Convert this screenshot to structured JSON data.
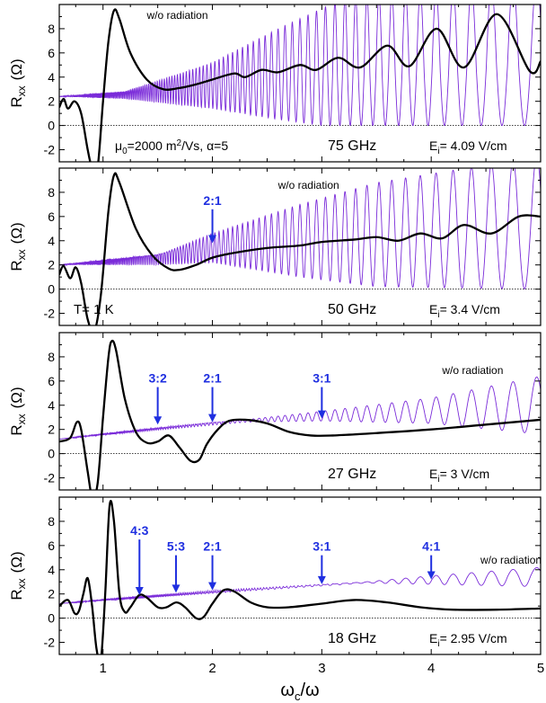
{
  "chart_data": [
    {
      "type": "line",
      "panel_label": "75 GHz",
      "field_label": "E",
      "field_sub": "i",
      "field_value": "= 4.09 V/cm",
      "extra_text": [
        "μ",
        "0",
        "=2000 m",
        "2",
        "/Vs,  α=5"
      ],
      "ylabel_main": "R",
      "ylabel_sub": "xx",
      "ylabel_unit": "(Ω)",
      "xlim": [
        0.6,
        5
      ],
      "ylim": [
        -3,
        10
      ],
      "yticks": [
        -2,
        0,
        2,
        4,
        6,
        8
      ],
      "xticks": [
        1,
        2,
        3,
        4,
        5
      ],
      "show_xticklabels": false,
      "dark_text_annotations": [
        {
          "text": "w/o radiation",
          "x": 1.4,
          "y": 8.8
        }
      ],
      "arrows": [],
      "series": [
        {
          "label_ref": "w/o radiation",
          "style": "oscillating",
          "color": "#7a2bd9",
          "baseline": [
            [
              0.6,
              2.4
            ],
            [
              1.0,
              2.6
            ],
            [
              2.0,
              3.4
            ],
            [
              3.0,
              4.0
            ],
            [
              4.0,
              4.5
            ],
            [
              5.0,
              5.0
            ]
          ],
          "envelope_top": [
            [
              0.6,
              2.4
            ],
            [
              1.2,
              2.8
            ],
            [
              2.0,
              5.2
            ],
            [
              2.6,
              8.0
            ],
            [
              3.2,
              10.5
            ],
            [
              5.0,
              12
            ]
          ],
          "envelope_bottom": [
            [
              0.6,
              2.4
            ],
            [
              1.2,
              2.2
            ],
            [
              2.0,
              1.4
            ],
            [
              2.6,
              0.5
            ],
            [
              3.0,
              0.0
            ],
            [
              5.0,
              0.0
            ]
          ]
        },
        {
          "label_ref": "with radiation",
          "style": "bold",
          "color": "#000000",
          "points": [
            [
              0.6,
              1.5
            ],
            [
              0.64,
              2.2
            ],
            [
              0.68,
              1.4
            ],
            [
              0.74,
              2.0
            ],
            [
              0.8,
              1.0
            ],
            [
              0.86,
              -2.0
            ],
            [
              0.9,
              -3.5
            ],
            [
              0.95,
              -3.5
            ],
            [
              1.0,
              2.0
            ],
            [
              1.05,
              7.0
            ],
            [
              1.1,
              9.5
            ],
            [
              1.15,
              8.8
            ],
            [
              1.25,
              6.0
            ],
            [
              1.4,
              3.8
            ],
            [
              1.55,
              3.0
            ],
            [
              1.7,
              3.1
            ],
            [
              1.85,
              3.4
            ],
            [
              2.0,
              3.8
            ],
            [
              2.2,
              4.3
            ],
            [
              2.3,
              4.0
            ],
            [
              2.45,
              4.6
            ],
            [
              2.6,
              4.4
            ],
            [
              2.8,
              5.0
            ],
            [
              2.95,
              4.6
            ],
            [
              3.15,
              5.6
            ],
            [
              3.35,
              4.8
            ],
            [
              3.6,
              6.6
            ],
            [
              3.8,
              4.9
            ],
            [
              4.05,
              8.0
            ],
            [
              4.3,
              4.8
            ],
            [
              4.6,
              9.2
            ],
            [
              4.9,
              4.5
            ],
            [
              5.0,
              5.3
            ]
          ]
        }
      ]
    },
    {
      "type": "line",
      "panel_label": "50 GHz",
      "field_label": "E",
      "field_sub": "i",
      "field_value": "= 3.4 V/cm",
      "extra_text": [
        "T= 1 K"
      ],
      "ylabel_main": "R",
      "ylabel_sub": "xx",
      "ylabel_unit": "(Ω)",
      "xlim": [
        0.6,
        5
      ],
      "ylim": [
        -3,
        10
      ],
      "yticks": [
        -2,
        0,
        2,
        4,
        6,
        8
      ],
      "xticks": [
        1,
        2,
        3,
        4,
        5
      ],
      "show_xticklabels": false,
      "dark_text_annotations": [
        {
          "text": "w/o radiation",
          "x": 2.6,
          "y": 8.3
        }
      ],
      "arrows": [
        {
          "label": "2:1",
          "x": 2.0,
          "y_from": 6.6,
          "y_to": 3.8
        }
      ],
      "series": [
        {
          "label_ref": "w/o radiation",
          "style": "oscillating",
          "color": "#7a2bd9",
          "baseline": [
            [
              0.6,
              2.0
            ],
            [
              1.0,
              2.4
            ],
            [
              2.0,
              3.4
            ],
            [
              3.0,
              4.0
            ],
            [
              4.0,
              4.6
            ],
            [
              5.0,
              5.0
            ]
          ],
          "envelope_top": [
            [
              0.6,
              2.0
            ],
            [
              1.5,
              2.8
            ],
            [
              2.0,
              4.6
            ],
            [
              2.8,
              7.0
            ],
            [
              3.5,
              8.8
            ],
            [
              5.0,
              11
            ]
          ],
          "envelope_bottom": [
            [
              0.6,
              2.0
            ],
            [
              1.5,
              2.0
            ],
            [
              2.0,
              2.2
            ],
            [
              2.8,
              1.0
            ],
            [
              3.5,
              0.2
            ],
            [
              5.0,
              0.0
            ]
          ]
        },
        {
          "label_ref": "with radiation",
          "style": "bold",
          "color": "#000000",
          "points": [
            [
              0.6,
              1.2
            ],
            [
              0.64,
              1.9
            ],
            [
              0.7,
              0.9
            ],
            [
              0.75,
              1.8
            ],
            [
              0.8,
              0.5
            ],
            [
              0.86,
              -2.5
            ],
            [
              0.92,
              -3.5
            ],
            [
              0.98,
              -0.5
            ],
            [
              1.05,
              6.5
            ],
            [
              1.1,
              9.4
            ],
            [
              1.15,
              8.8
            ],
            [
              1.3,
              5.0
            ],
            [
              1.45,
              2.8
            ],
            [
              1.6,
              1.7
            ],
            [
              1.7,
              1.6
            ],
            [
              1.85,
              2.0
            ],
            [
              2.0,
              2.6
            ],
            [
              2.2,
              3.0
            ],
            [
              2.5,
              3.4
            ],
            [
              2.8,
              3.6
            ],
            [
              3.0,
              3.9
            ],
            [
              3.3,
              4.1
            ],
            [
              3.5,
              4.3
            ],
            [
              3.7,
              4.0
            ],
            [
              3.9,
              4.6
            ],
            [
              4.1,
              4.2
            ],
            [
              4.3,
              5.3
            ],
            [
              4.55,
              4.6
            ],
            [
              4.8,
              6.0
            ],
            [
              5.0,
              6.0
            ]
          ]
        }
      ]
    },
    {
      "type": "line",
      "panel_label": "27 GHz",
      "field_label": "E",
      "field_sub": "i",
      "field_value": "= 3 V/cm",
      "extra_text": [],
      "ylabel_main": "R",
      "ylabel_sub": "xx",
      "ylabel_unit": "(Ω)",
      "xlim": [
        0.6,
        5
      ],
      "ylim": [
        -3,
        10
      ],
      "yticks": [
        -2,
        0,
        2,
        4,
        6,
        8
      ],
      "xticks": [
        1,
        2,
        3,
        4,
        5
      ],
      "show_xticklabels": false,
      "dark_text_annotations": [
        {
          "text": "w/o radiation",
          "x": 4.1,
          "y": 6.6
        }
      ],
      "arrows": [
        {
          "label": "3:2",
          "x": 1.5,
          "y_from": 5.5,
          "y_to": 2.4
        },
        {
          "label": "2:1",
          "x": 2.0,
          "y_from": 5.5,
          "y_to": 2.6
        },
        {
          "label": "3:1",
          "x": 3.0,
          "y_from": 5.5,
          "y_to": 2.9
        }
      ],
      "series": [
        {
          "label_ref": "w/o radiation",
          "style": "oscillating",
          "color": "#7a2bd9",
          "baseline": [
            [
              0.6,
              1.2
            ],
            [
              1.0,
              1.7
            ],
            [
              2.0,
              2.6
            ],
            [
              3.0,
              3.1
            ],
            [
              4.0,
              3.6
            ],
            [
              5.0,
              4.0
            ]
          ],
          "envelope_top": [
            [
              0.6,
              1.2
            ],
            [
              2.3,
              2.8
            ],
            [
              3.0,
              3.5
            ],
            [
              4.0,
              4.6
            ],
            [
              5.0,
              6.4
            ]
          ],
          "envelope_bottom": [
            [
              0.6,
              1.2
            ],
            [
              2.3,
              2.6
            ],
            [
              3.0,
              2.7
            ],
            [
              4.0,
              2.5
            ],
            [
              5.0,
              1.6
            ]
          ]
        },
        {
          "label_ref": "with radiation",
          "style": "bold",
          "color": "#000000",
          "points": [
            [
              0.6,
              1.0
            ],
            [
              0.7,
              1.3
            ],
            [
              0.76,
              2.6
            ],
            [
              0.8,
              2.0
            ],
            [
              0.86,
              -1.5
            ],
            [
              0.9,
              -3.5
            ],
            [
              0.95,
              -2.5
            ],
            [
              1.0,
              3.0
            ],
            [
              1.05,
              8.0
            ],
            [
              1.08,
              9.3
            ],
            [
              1.12,
              8.5
            ],
            [
              1.2,
              4.5
            ],
            [
              1.3,
              1.8
            ],
            [
              1.4,
              0.9
            ],
            [
              1.5,
              1.0
            ],
            [
              1.6,
              1.5
            ],
            [
              1.7,
              0.5
            ],
            [
              1.8,
              -0.6
            ],
            [
              1.88,
              -0.5
            ],
            [
              1.95,
              0.8
            ],
            [
              2.05,
              2.0
            ],
            [
              2.15,
              2.7
            ],
            [
              2.3,
              2.8
            ],
            [
              2.5,
              2.5
            ],
            [
              2.7,
              1.8
            ],
            [
              2.9,
              1.5
            ],
            [
              3.1,
              1.5
            ],
            [
              3.5,
              1.7
            ],
            [
              4.0,
              2.0
            ],
            [
              4.5,
              2.4
            ],
            [
              5.0,
              2.8
            ]
          ]
        }
      ]
    },
    {
      "type": "line",
      "panel_label": "18 GHz",
      "field_label": "E",
      "field_sub": "i",
      "field_value": "= 2.95 V/cm",
      "extra_text": [],
      "ylabel_main": "R",
      "ylabel_sub": "xx",
      "ylabel_unit": "(Ω)",
      "xlim": [
        0.6,
        5
      ],
      "ylim": [
        -3,
        10
      ],
      "yticks": [
        -2,
        0,
        2,
        4,
        6,
        8
      ],
      "xticks": [
        1,
        2,
        3,
        4,
        5
      ],
      "xticklabels": [
        "1",
        "2",
        "3",
        "4",
        "5"
      ],
      "show_xticklabels": true,
      "xlabel_main": "ω",
      "xlabel_sub": "c",
      "xlabel_rest": "/ω",
      "dark_text_annotations": [
        {
          "text": "w/o radiation",
          "x": 4.45,
          "y": 4.5
        }
      ],
      "arrows": [
        {
          "label": "4:3",
          "x": 1.333,
          "y_from": 6.5,
          "y_to": 1.9
        },
        {
          "label": "5:3",
          "x": 1.667,
          "y_from": 5.2,
          "y_to": 2.1
        },
        {
          "label": "2:1",
          "x": 2.0,
          "y_from": 5.2,
          "y_to": 2.3
        },
        {
          "label": "3:1",
          "x": 3.0,
          "y_from": 5.2,
          "y_to": 2.8
        },
        {
          "label": "4:1",
          "x": 4.0,
          "y_from": 5.2,
          "y_to": 3.2
        }
      ],
      "series": [
        {
          "label_ref": "w/o radiation",
          "style": "oscillating",
          "color": "#7a2bd9",
          "baseline": [
            [
              0.6,
              1.2
            ],
            [
              1.0,
              1.6
            ],
            [
              2.0,
              2.3
            ],
            [
              3.0,
              2.8
            ],
            [
              4.0,
              3.2
            ],
            [
              5.0,
              3.5
            ]
          ],
          "envelope_top": [
            [
              0.6,
              1.2
            ],
            [
              3.4,
              3.0
            ],
            [
              4.0,
              3.5
            ],
            [
              5.0,
              4.2
            ]
          ],
          "envelope_bottom": [
            [
              0.6,
              1.2
            ],
            [
              3.4,
              2.9
            ],
            [
              4.0,
              2.8
            ],
            [
              5.0,
              2.6
            ]
          ]
        },
        {
          "label_ref": "with radiation",
          "style": "bold",
          "color": "#000000",
          "points": [
            [
              0.6,
              1.0
            ],
            [
              0.68,
              1.5
            ],
            [
              0.74,
              0.4
            ],
            [
              0.78,
              0.6
            ],
            [
              0.82,
              2.0
            ],
            [
              0.86,
              3.3
            ],
            [
              0.9,
              1.0
            ],
            [
              0.94,
              -2.5
            ],
            [
              0.98,
              -3.5
            ],
            [
              1.02,
              2.0
            ],
            [
              1.06,
              9.3
            ],
            [
              1.1,
              8.0
            ],
            [
              1.15,
              2.0
            ],
            [
              1.2,
              0.5
            ],
            [
              1.25,
              0.9
            ],
            [
              1.33,
              1.9
            ],
            [
              1.4,
              1.7
            ],
            [
              1.5,
              0.9
            ],
            [
              1.58,
              0.9
            ],
            [
              1.67,
              1.3
            ],
            [
              1.75,
              0.9
            ],
            [
              1.85,
              0.0
            ],
            [
              1.92,
              0.1
            ],
            [
              2.0,
              1.2
            ],
            [
              2.1,
              2.3
            ],
            [
              2.2,
              2.2
            ],
            [
              2.35,
              1.3
            ],
            [
              2.5,
              0.9
            ],
            [
              2.7,
              0.9
            ],
            [
              3.0,
              1.2
            ],
            [
              3.3,
              1.5
            ],
            [
              3.6,
              1.3
            ],
            [
              3.9,
              0.9
            ],
            [
              4.2,
              0.7
            ],
            [
              4.6,
              0.7
            ],
            [
              5.0,
              0.8
            ]
          ]
        }
      ]
    }
  ]
}
